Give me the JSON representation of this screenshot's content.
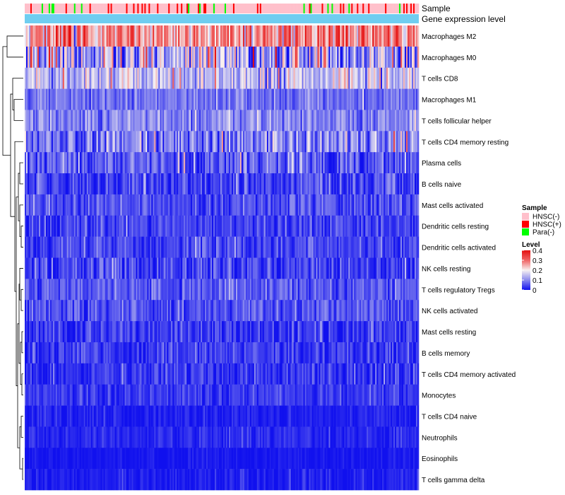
{
  "chart_data": {
    "type": "heatmap",
    "title": "",
    "annotation_tracks": [
      {
        "name": "Sample",
        "label": "Sample"
      },
      {
        "name": "Gene expression level",
        "label": "Gene expression level"
      }
    ],
    "sample_composition": {
      "HNSC(-)": 0.82,
      "HNSC(+)": 0.11,
      "Para(-)": 0.07
    },
    "rows": [
      {
        "label": "Macrophages M2",
        "mean": 0.27,
        "spread": 0.09
      },
      {
        "label": "Macrophages M0",
        "mean": 0.13,
        "spread": 0.14
      },
      {
        "label": "T cells CD8",
        "mean": 0.15,
        "spread": 0.07
      },
      {
        "label": "Macrophages M1",
        "mean": 0.08,
        "spread": 0.04
      },
      {
        "label": "T cells follicular helper",
        "mean": 0.1,
        "spread": 0.05
      },
      {
        "label": "T cells CD4 memory resting",
        "mean": 0.09,
        "spread": 0.08
      },
      {
        "label": "Plasma cells",
        "mean": 0.06,
        "spread": 0.06
      },
      {
        "label": "B cells naive",
        "mean": 0.04,
        "spread": 0.05
      },
      {
        "label": "Mast cells activated",
        "mean": 0.05,
        "spread": 0.04
      },
      {
        "label": "Dendritic cells resting",
        "mean": 0.04,
        "spread": 0.04
      },
      {
        "label": "Dendritic cells activated",
        "mean": 0.04,
        "spread": 0.04
      },
      {
        "label": "NK cells resting",
        "mean": 0.04,
        "spread": 0.05
      },
      {
        "label": "T cells regulatory  Tregs",
        "mean": 0.06,
        "spread": 0.04
      },
      {
        "label": "NK cells activated",
        "mean": 0.05,
        "spread": 0.04
      },
      {
        "label": "Mast cells resting",
        "mean": 0.03,
        "spread": 0.04
      },
      {
        "label": "B cells memory",
        "mean": 0.03,
        "spread": 0.04
      },
      {
        "label": "T cells CD4 memory activated",
        "mean": 0.03,
        "spread": 0.04
      },
      {
        "label": "Monocytes",
        "mean": 0.03,
        "spread": 0.03
      },
      {
        "label": "T cells CD4 naive",
        "mean": 0.01,
        "spread": 0.02
      },
      {
        "label": "Neutrophils",
        "mean": 0.02,
        "spread": 0.02
      },
      {
        "label": "Eosinophils",
        "mean": 0.005,
        "spread": 0.01
      },
      {
        "label": "T cells gamma delta",
        "mean": 0.01,
        "spread": 0.02
      }
    ],
    "num_samples": 280,
    "color_scale": {
      "stops": [
        {
          "value": 0,
          "color": "#1010ee"
        },
        {
          "value": 0.1,
          "color": "#8a8aee"
        },
        {
          "value": 0.2,
          "color": "#f7f1f1"
        },
        {
          "value": 0.3,
          "color": "#f06464"
        },
        {
          "value": 0.4,
          "color": "#e41010"
        }
      ]
    },
    "legend": {
      "position": "right",
      "sample_title": "Sample",
      "sample_entries": [
        {
          "label": "HNSC(-)",
          "color": "#ffc0cb"
        },
        {
          "label": "HNSC(+)",
          "color": "#ff0000"
        },
        {
          "label": "Para(-)",
          "color": "#00ff00"
        }
      ],
      "level_title": "Level",
      "level_ticks": [
        0.4,
        0.3,
        0.2,
        0.1,
        0
      ],
      "level_tick_labels": [
        "0.4",
        "0.3",
        "0.2",
        "0.1",
        "0"
      ]
    },
    "gene_expression_color": "#6fcdf0",
    "dendrogram": "row clustering (left)"
  }
}
